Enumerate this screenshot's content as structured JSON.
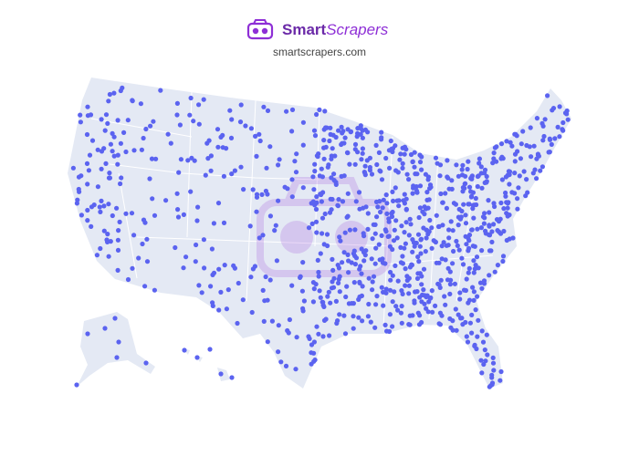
{
  "header": {
    "brand_first": "Smart",
    "brand_second": "Scrapers",
    "url": "smartscrapers.com"
  }
}
